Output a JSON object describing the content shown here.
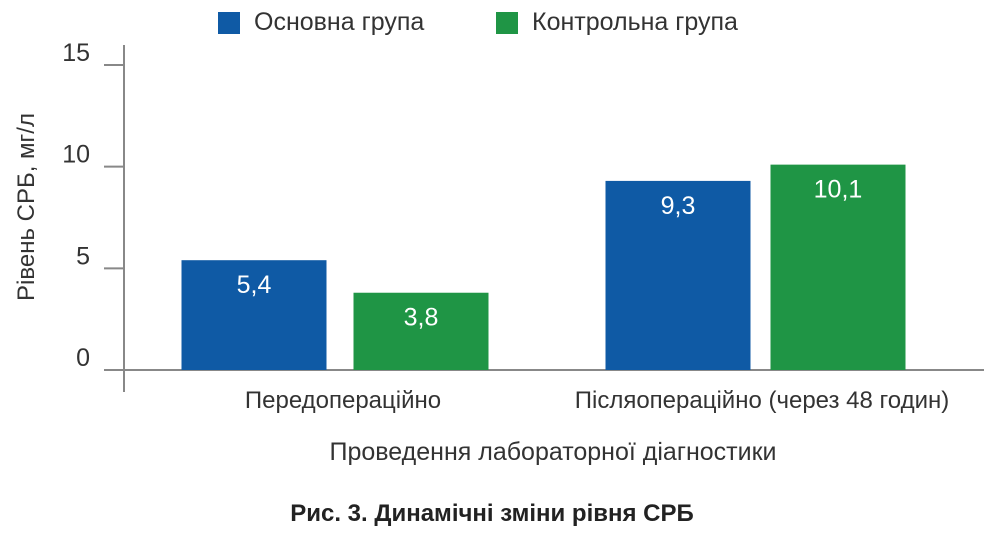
{
  "chart_data": {
    "type": "bar",
    "categories": [
      "Передопераційно",
      "Післяопераційно (через 48 годин)"
    ],
    "series": [
      {
        "name": "Основна група",
        "values": [
          5.4,
          9.3
        ],
        "labels": [
          "5,4",
          "9,3"
        ],
        "color": "#0f5aa5"
      },
      {
        "name": "Контрольна група",
        "values": [
          3.8,
          10.1
        ],
        "labels": [
          "3,8",
          "10,1"
        ],
        "color": "#1f9545"
      }
    ],
    "xlabel": "Проведення лабораторної діагностики",
    "ylabel": "Рівень СРБ, мг/л",
    "ylim": [
      0,
      15
    ],
    "yticks": [
      "0",
      "5",
      "10",
      "15"
    ],
    "grid": false,
    "legend_position": "top",
    "caption": "Рис. 3. Динамічні зміни рівня СРБ"
  }
}
